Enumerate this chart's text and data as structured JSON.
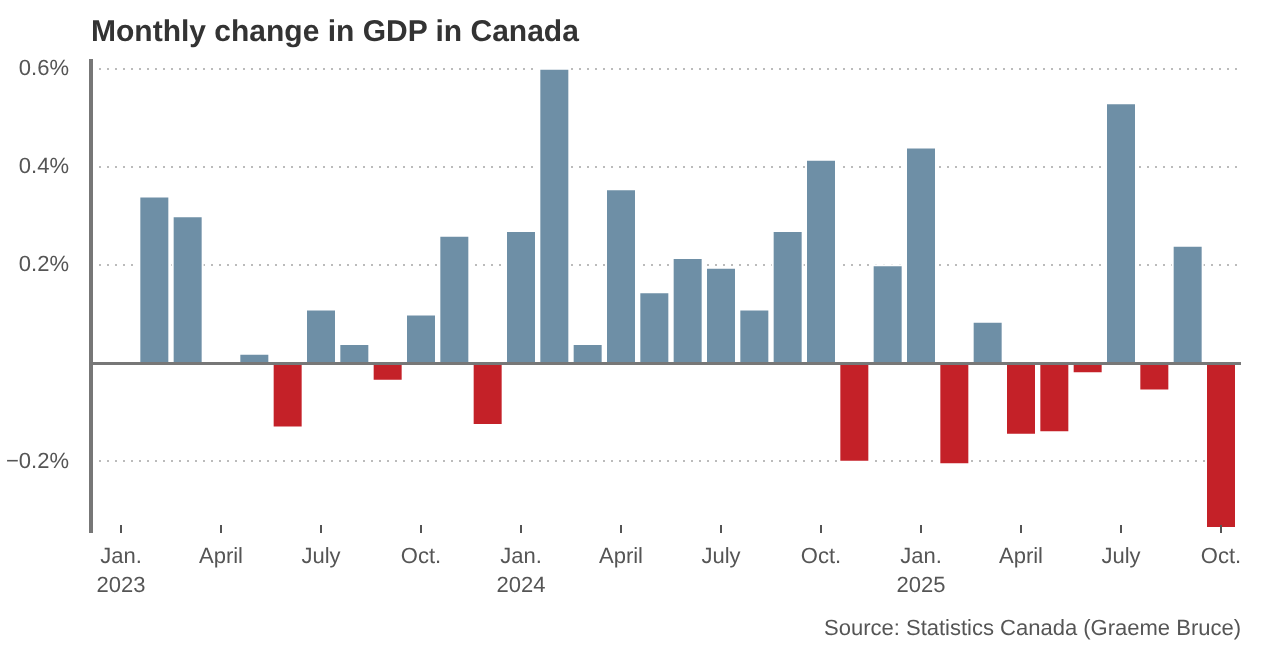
{
  "chart_data": {
    "type": "bar",
    "title": "Monthly change in GDP in Canada",
    "categories": [
      "Jan.\n2023",
      null,
      null,
      "April",
      null,
      null,
      "July",
      null,
      null,
      "Oct.",
      null,
      null,
      "Jan.\n2024",
      null,
      null,
      "April",
      null,
      null,
      "July",
      null,
      null,
      "Oct.",
      null,
      null,
      "Jan.\n2025",
      null,
      null,
      "April",
      null,
      null,
      "July",
      null,
      null,
      "Oct."
    ],
    "values": [
      null,
      0.34,
      0.3,
      0.005,
      0.02,
      -0.13,
      0.11,
      0.04,
      -0.035,
      0.1,
      0.26,
      -0.125,
      0.27,
      0.6,
      0.04,
      0.355,
      0.145,
      0.215,
      0.195,
      0.11,
      0.27,
      0.415,
      -0.2,
      0.2,
      0.44,
      -0.205,
      0.085,
      -0.145,
      -0.14,
      -0.02,
      0.53,
      -0.055,
      0.24,
      -0.335
    ],
    "colors": [
      null,
      "#6e8fa6",
      "#6e8fa6",
      "#6e8fa6",
      "#6e8fa6",
      "#c42128",
      "#6e8fa6",
      "#6e8fa6",
      "#c42128",
      "#6e8fa6",
      "#6e8fa6",
      "#c42128",
      "#6e8fa6",
      "#6e8fa6",
      "#6e8fa6",
      "#6e8fa6",
      "#6e8fa6",
      "#6e8fa6",
      "#6e8fa6",
      "#6e8fa6",
      "#6e8fa6",
      "#6e8fa6",
      "#c42128",
      "#6e8fa6",
      "#6e8fa6",
      "#c42128",
      "#6e8fa6",
      "#c42128",
      "#c42128",
      "#c42128",
      "#6e8fa6",
      "#c42128",
      "#6e8fa6",
      "#c42128"
    ],
    "ylim": [
      -0.345,
      0.62
    ],
    "yticks": [
      {
        "value": -0.2,
        "label": "−0.2%"
      },
      {
        "value": 0,
        "label": null
      },
      {
        "value": 0.2,
        "label": "0.2%"
      },
      {
        "value": 0.4,
        "label": "0.4%"
      },
      {
        "value": 0.6,
        "label": "0.6%"
      }
    ],
    "grid": "y",
    "annotations": [
      "Source: Statistics Canada (Graeme Bruce)"
    ]
  }
}
